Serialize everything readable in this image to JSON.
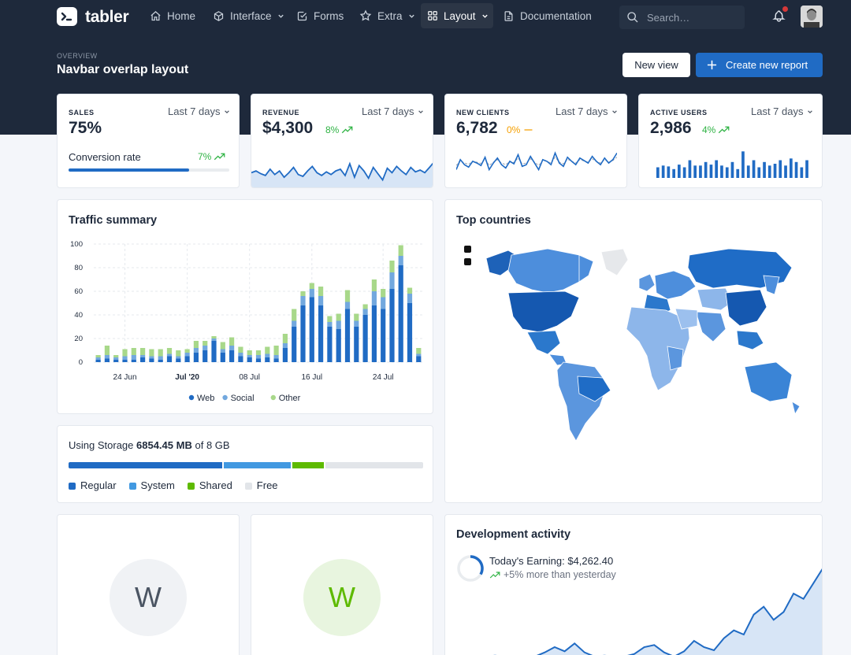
{
  "brand": {
    "name": "tabler"
  },
  "nav": {
    "items": [
      {
        "label": "Home",
        "icon": "home-icon"
      },
      {
        "label": "Interface",
        "icon": "cube-icon"
      },
      {
        "label": "Forms",
        "icon": "checkbox-icon"
      },
      {
        "label": "Extra",
        "icon": "star-icon"
      },
      {
        "label": "Layout",
        "icon": "layout-grid-icon",
        "active": true
      },
      {
        "label": "Documentation",
        "icon": "file-text-icon"
      }
    ],
    "search_placeholder": "Search…"
  },
  "page": {
    "pretitle": "OVERVIEW",
    "title": "Navbar overlap layout",
    "btn_new_view": "New view",
    "btn_create": "Create new report"
  },
  "stats": {
    "sales": {
      "label": "SALES",
      "period": "Last 7 days",
      "value": "75%",
      "sublabel": "Conversion rate",
      "trend": "7%",
      "progress": 0.75
    },
    "revenue": {
      "label": "REVENUE",
      "period": "Last 7 days",
      "value": "$4,300",
      "trend": "8%"
    },
    "new_clients": {
      "label": "NEW CLIENTS",
      "period": "Last 7 days",
      "value": "6,782",
      "trend": "0%"
    },
    "active_users": {
      "label": "ACTIVE USERS",
      "period": "Last 7 days",
      "value": "2,986",
      "trend": "4%"
    }
  },
  "traffic": {
    "title": "Traffic summary"
  },
  "storage": {
    "prefix": "Using Storage",
    "used": "6854.45 MB",
    "of": "of",
    "total": "8 GB",
    "segments": [
      {
        "name": "Regular",
        "fraction": 0.44,
        "color": "#206bc4"
      },
      {
        "name": "System",
        "fraction": 0.19,
        "color": "#4299e1"
      },
      {
        "name": "Shared",
        "fraction": 0.09,
        "color": "#5eba00"
      },
      {
        "name": "Free",
        "fraction": 0.28,
        "color": "#e2e5e9"
      }
    ]
  },
  "countries": {
    "title": "Top countries"
  },
  "users": [
    {
      "initial": "W",
      "bg": "#f0f2f5",
      "fg": "#4b5563"
    },
    {
      "initial": "W",
      "bg": "#e8f5df",
      "fg": "#5eba00"
    }
  ],
  "dev": {
    "title": "Development activity",
    "earning_label": "Today's Earning:",
    "earning": "$4,262.40",
    "trend": "+5% more than yesterday"
  },
  "colors": {
    "primary": "#206bc4",
    "success": "#2fb344",
    "warning": "#f59f00",
    "dark": "#1e293b"
  },
  "chart_data": [
    {
      "type": "bar",
      "stacked": true,
      "title": "Traffic summary",
      "x_ticks": [
        "24 Jun",
        "Jul '20",
        "08 Jul",
        "16 Jul",
        "24 Jul"
      ],
      "ylim": [
        0,
        100
      ],
      "y_ticks": [
        0,
        20,
        40,
        60,
        80,
        100
      ],
      "grid": true,
      "legend_position": "bottom",
      "series": [
        {
          "name": "Web",
          "color": "#206bc4",
          "values": [
            2,
            3,
            2,
            2,
            2,
            4,
            3,
            2,
            5,
            3,
            5,
            8,
            10,
            18,
            8,
            10,
            5,
            4,
            3,
            4,
            3,
            12,
            30,
            48,
            55,
            48,
            30,
            28,
            45,
            30,
            40,
            48,
            45,
            62,
            82,
            50,
            5
          ]
        },
        {
          "name": "Social",
          "color": "#72a8de",
          "values": [
            2,
            3,
            2,
            3,
            4,
            2,
            2,
            3,
            2,
            2,
            3,
            4,
            4,
            2,
            3,
            4,
            3,
            2,
            3,
            3,
            3,
            4,
            5,
            8,
            7,
            8,
            4,
            7,
            6,
            5,
            5,
            12,
            10,
            14,
            8,
            8,
            2
          ]
        },
        {
          "name": "Other",
          "color": "#a8d88a",
          "values": [
            2,
            8,
            2,
            6,
            6,
            6,
            6,
            6,
            5,
            5,
            3,
            6,
            4,
            2,
            6,
            7,
            5,
            4,
            4,
            6,
            8,
            8,
            10,
            4,
            5,
            8,
            5,
            6,
            10,
            6,
            4,
            10,
            7,
            10,
            9,
            5,
            5
          ]
        }
      ]
    },
    {
      "type": "area",
      "name": "Revenue sparkline",
      "values": [
        38,
        40,
        37,
        35,
        42,
        36,
        40,
        33,
        38,
        44,
        36,
        34,
        40,
        45,
        38,
        35,
        39,
        36,
        40,
        42,
        35,
        48,
        33,
        46,
        40,
        32,
        44,
        37,
        30,
        43,
        38,
        45,
        40,
        36,
        44,
        39,
        41,
        38,
        44,
        50
      ]
    },
    {
      "type": "line",
      "name": "New clients sparkline",
      "values": [
        30,
        42,
        36,
        33,
        40,
        38,
        35,
        45,
        30,
        38,
        44,
        36,
        32,
        40,
        37,
        48,
        34,
        36,
        46,
        38,
        30,
        42,
        40,
        36,
        50,
        38,
        34,
        45,
        40,
        36,
        44,
        41,
        38,
        46,
        40,
        36,
        44,
        38,
        42,
        50
      ]
    },
    {
      "type": "bar",
      "name": "Active users bars",
      "values": [
        12,
        14,
        13,
        10,
        15,
        12,
        20,
        14,
        14,
        18,
        15,
        20,
        14,
        12,
        18,
        10,
        30,
        14,
        20,
        12,
        18,
        14,
        16,
        20,
        14,
        22,
        18,
        12,
        20
      ]
    },
    {
      "type": "area",
      "name": "Development activity",
      "values": [
        0,
        0,
        0,
        0,
        0,
        2,
        0,
        0,
        0,
        0,
        8,
        18,
        10,
        25,
        8,
        0,
        2,
        0,
        0,
        5,
        18,
        22,
        8,
        0,
        10,
        30,
        18,
        12,
        35,
        50,
        42,
        80,
        95,
        70,
        85,
        120,
        110,
        140,
        170
      ]
    }
  ]
}
